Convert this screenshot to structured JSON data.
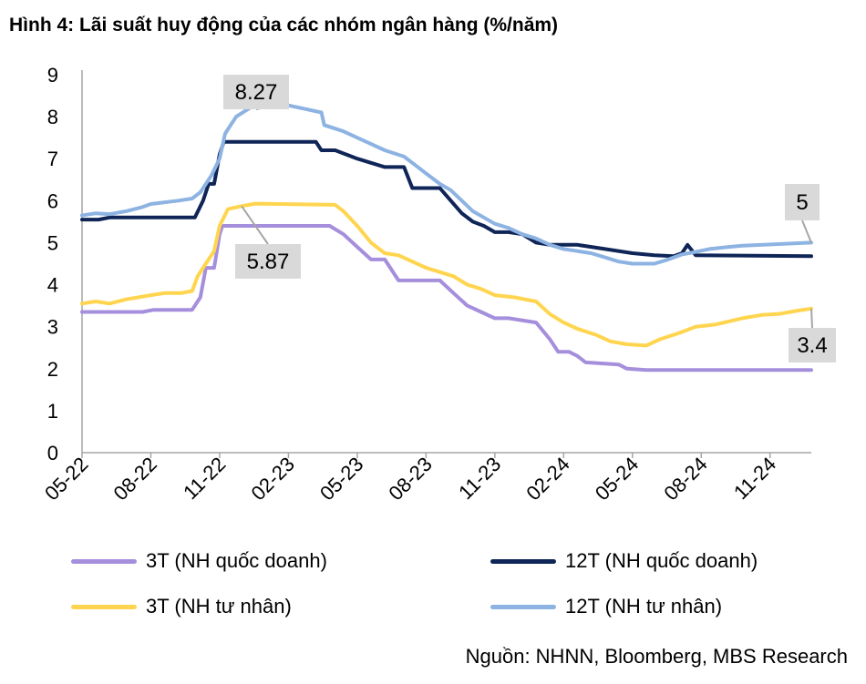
{
  "title": "Hình 4: Lãi suất huy động của các nhóm ngân hàng (%/năm)",
  "source": "Nguồn: NHNN, Bloomberg, MBS Research",
  "chart_data": {
    "type": "line",
    "ylim": [
      0,
      9
    ],
    "yticks": [
      0,
      1,
      2,
      3,
      4,
      5,
      6,
      7,
      8,
      9
    ],
    "xticks": [
      "05-22",
      "08-22",
      "11-22",
      "02-23",
      "05-23",
      "08-23",
      "11-23",
      "02-24",
      "05-24",
      "08-24",
      "11-24"
    ],
    "grid": false,
    "legend_position": "bottom",
    "series": [
      {
        "name": "3T (NH quốc doanh)",
        "color": "#a58fdc",
        "points": [
          [
            0,
            3.35
          ],
          [
            2.2,
            3.35
          ],
          [
            2.6,
            3.4
          ],
          [
            4,
            3.4
          ],
          [
            4.3,
            3.7
          ],
          [
            4.5,
            4.4
          ],
          [
            4.8,
            4.4
          ],
          [
            5.0,
            5.2
          ],
          [
            5.1,
            5.4
          ],
          [
            9,
            5.4
          ],
          [
            9.5,
            5.2
          ],
          [
            10.0,
            4.9
          ],
          [
            10.5,
            4.6
          ],
          [
            11.0,
            4.6
          ],
          [
            11.5,
            4.1
          ],
          [
            13.0,
            4.1
          ],
          [
            13.5,
            3.8
          ],
          [
            14.0,
            3.5
          ],
          [
            14.5,
            3.35
          ],
          [
            15.0,
            3.2
          ],
          [
            15.5,
            3.2
          ],
          [
            16.5,
            3.1
          ],
          [
            17.0,
            2.7
          ],
          [
            17.3,
            2.4
          ],
          [
            17.7,
            2.4
          ],
          [
            18.0,
            2.3
          ],
          [
            18.3,
            2.15
          ],
          [
            19.5,
            2.1
          ],
          [
            19.8,
            2.0
          ],
          [
            20.5,
            1.97
          ],
          [
            24,
            1.97
          ],
          [
            26.5,
            1.97
          ]
        ]
      },
      {
        "name": "12T (NH quốc doanh)",
        "color": "#0f2557",
        "points": [
          [
            0,
            5.55
          ],
          [
            0.6,
            5.55
          ],
          [
            1,
            5.6
          ],
          [
            2.2,
            5.6
          ],
          [
            2.5,
            5.6
          ],
          [
            4.1,
            5.6
          ],
          [
            4.4,
            6.0
          ],
          [
            4.6,
            6.4
          ],
          [
            4.8,
            6.4
          ],
          [
            5.0,
            7.1
          ],
          [
            5.15,
            7.4
          ],
          [
            8.5,
            7.4
          ],
          [
            8.7,
            7.2
          ],
          [
            9.2,
            7.2
          ],
          [
            9.6,
            7.1
          ],
          [
            10.0,
            7.0
          ],
          [
            10.5,
            6.9
          ],
          [
            11.0,
            6.8
          ],
          [
            11.7,
            6.8
          ],
          [
            12.0,
            6.3
          ],
          [
            13.0,
            6.3
          ],
          [
            13.4,
            6.0
          ],
          [
            13.8,
            5.7
          ],
          [
            14.2,
            5.5
          ],
          [
            14.6,
            5.4
          ],
          [
            15.0,
            5.25
          ],
          [
            15.5,
            5.25
          ],
          [
            16.0,
            5.2
          ],
          [
            16.5,
            5.0
          ],
          [
            17.0,
            4.95
          ],
          [
            18.0,
            4.95
          ],
          [
            19.0,
            4.85
          ],
          [
            20.0,
            4.75
          ],
          [
            20.8,
            4.7
          ],
          [
            21.5,
            4.68
          ],
          [
            21.8,
            4.75
          ],
          [
            22.0,
            4.95
          ],
          [
            22.3,
            4.7
          ],
          [
            26.5,
            4.68
          ]
        ]
      },
      {
        "name": "3T (NH tư nhân)",
        "color": "#ffd54f",
        "points": [
          [
            0,
            3.55
          ],
          [
            0.5,
            3.6
          ],
          [
            1,
            3.55
          ],
          [
            1.6,
            3.65
          ],
          [
            2.5,
            3.75
          ],
          [
            3,
            3.8
          ],
          [
            3.6,
            3.8
          ],
          [
            4.0,
            3.85
          ],
          [
            4.2,
            4.2
          ],
          [
            4.5,
            4.5
          ],
          [
            4.8,
            4.8
          ],
          [
            5.0,
            5.4
          ],
          [
            5.3,
            5.8
          ],
          [
            5.8,
            5.87
          ],
          [
            6.3,
            5.93
          ],
          [
            9.2,
            5.9
          ],
          [
            9.5,
            5.75
          ],
          [
            10.0,
            5.4
          ],
          [
            10.5,
            5.0
          ],
          [
            11.0,
            4.75
          ],
          [
            11.5,
            4.7
          ],
          [
            12.5,
            4.4
          ],
          [
            13.5,
            4.2
          ],
          [
            14.0,
            4.0
          ],
          [
            14.5,
            3.9
          ],
          [
            15.0,
            3.75
          ],
          [
            15.7,
            3.7
          ],
          [
            16.5,
            3.6
          ],
          [
            17.0,
            3.3
          ],
          [
            17.5,
            3.1
          ],
          [
            18.0,
            2.95
          ],
          [
            18.7,
            2.8
          ],
          [
            19.2,
            2.65
          ],
          [
            19.8,
            2.58
          ],
          [
            20.5,
            2.55
          ],
          [
            21.0,
            2.7
          ],
          [
            21.7,
            2.85
          ],
          [
            22.3,
            3.0
          ],
          [
            23.0,
            3.05
          ],
          [
            24.0,
            3.2
          ],
          [
            24.7,
            3.28
          ],
          [
            25.3,
            3.3
          ],
          [
            26.0,
            3.38
          ],
          [
            26.5,
            3.43
          ]
        ]
      },
      {
        "name": "12T (NH tư nhân)",
        "color": "#8db3e2",
        "points": [
          [
            0,
            5.65
          ],
          [
            0.5,
            5.7
          ],
          [
            1.0,
            5.68
          ],
          [
            1.6,
            5.75
          ],
          [
            2.2,
            5.85
          ],
          [
            2.5,
            5.92
          ],
          [
            3.5,
            6.0
          ],
          [
            4.0,
            6.05
          ],
          [
            4.3,
            6.2
          ],
          [
            4.7,
            6.6
          ],
          [
            5.0,
            7.0
          ],
          [
            5.2,
            7.6
          ],
          [
            5.6,
            8.0
          ],
          [
            6.2,
            8.25
          ],
          [
            7.5,
            8.27
          ],
          [
            8.0,
            8.2
          ],
          [
            8.7,
            8.1
          ],
          [
            8.8,
            7.8
          ],
          [
            9.5,
            7.65
          ],
          [
            10.0,
            7.5
          ],
          [
            10.5,
            7.35
          ],
          [
            11.0,
            7.2
          ],
          [
            11.7,
            7.05
          ],
          [
            12.0,
            6.9
          ],
          [
            12.5,
            6.65
          ],
          [
            13.0,
            6.4
          ],
          [
            13.4,
            6.25
          ],
          [
            13.8,
            6.0
          ],
          [
            14.2,
            5.75
          ],
          [
            14.6,
            5.6
          ],
          [
            15.0,
            5.45
          ],
          [
            15.5,
            5.35
          ],
          [
            16.0,
            5.2
          ],
          [
            16.5,
            5.1
          ],
          [
            17.0,
            4.95
          ],
          [
            17.5,
            4.85
          ],
          [
            18.0,
            4.8
          ],
          [
            18.5,
            4.75
          ],
          [
            19.0,
            4.65
          ],
          [
            19.5,
            4.55
          ],
          [
            20.0,
            4.5
          ],
          [
            20.8,
            4.5
          ],
          [
            21.3,
            4.6
          ],
          [
            21.8,
            4.72
          ],
          [
            22.3,
            4.78
          ],
          [
            22.8,
            4.85
          ],
          [
            23.5,
            4.9
          ],
          [
            24.0,
            4.93
          ],
          [
            26.5,
            5.0
          ]
        ]
      }
    ],
    "callouts": [
      {
        "label": "8.27",
        "series": 3,
        "x": 7.0,
        "y": 8.27
      },
      {
        "label": "5.87",
        "series": 2,
        "x": 5.8,
        "y": 5.87
      },
      {
        "label": "5",
        "series": 3,
        "x": 26.5,
        "y": 5.0
      },
      {
        "label": "3.4",
        "series": 2,
        "x": 26.5,
        "y": 3.43
      }
    ],
    "x_range": [
      0,
      26.5
    ]
  }
}
